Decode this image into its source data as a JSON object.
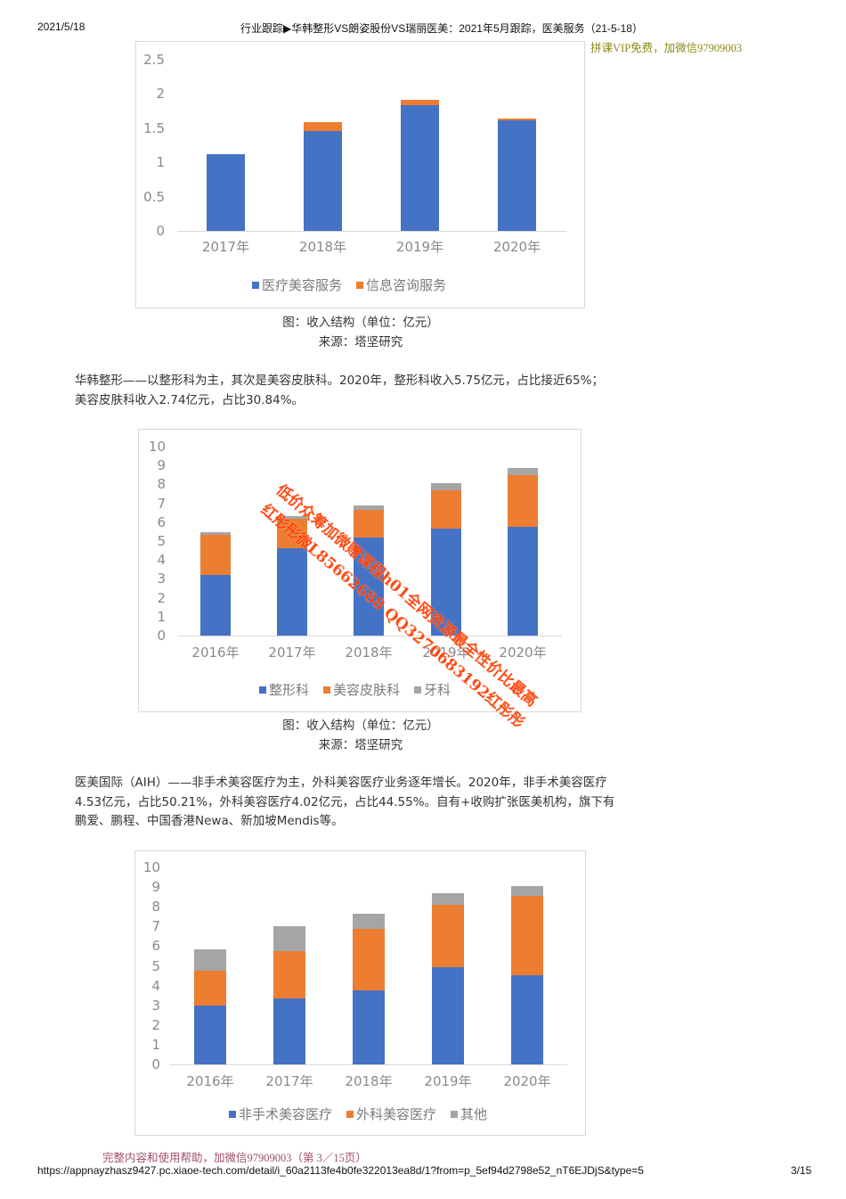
{
  "header": {
    "date": "2021/5/18",
    "title": "行业跟踪▶华韩整形VS朗姿股份VS瑞丽医美：2021年5月跟踪，医美服务（21-5-18）",
    "promo": "拼课VIP免费，加微信97909003"
  },
  "colors": {
    "blue": "#4472c4",
    "orange": "#ed7d31",
    "gray": "#a5a5a5",
    "watermark": "#ff3d00"
  },
  "figure1": {
    "caption": "图：收入结构（单位：亿元）",
    "source": "来源：塔坚研究"
  },
  "paragraph1": {
    "line1": "华韩整形——以整形科为主，其次是美容皮肤科。2020年，整形科收入5.75亿元，占比接近65%；",
    "line2": "美容皮肤科收入2.74亿元，占比30.84%。"
  },
  "figure2": {
    "caption": "图：收入结构（单位：亿元）",
    "source": "来源：塔坚研究"
  },
  "paragraph2": {
    "line1": "医美国际（AIH）——非手术美容医疗为主，外科美容医疗业务逐年增长。2020年，非手术美容医疗",
    "line2": "4.53亿元，占比50.21%，外科美容医疗4.02亿元，占比44.55%。自有+收购扩张医美机构，旗下有",
    "line3": "鹏爱、鹏程、中国香港Newa、新加坡Mendis等。"
  },
  "watermark": {
    "line1": "低价众筹加微赠课程h01全网资源最全性价比最高",
    "line2": "红彤彤微L85662688 QQ3270683192红彤彤"
  },
  "footer": {
    "promo": "完整内容和使用帮助，加微信97909003（第 3／15页）",
    "url": "https://appnayzhasz9427.pc.xiaoe-tech.com/detail/i_60a2113fe4b0fe322013ea8d/1?from=p_5ef94d2798e52_nT6EJDjS&type=5",
    "page": "3/15"
  },
  "chart_data": [
    {
      "type": "bar",
      "stacked": true,
      "title": "",
      "xlabel": "",
      "ylabel": "",
      "ylim": [
        0,
        2.5
      ],
      "yticks": [
        "0",
        "0.5",
        "1",
        "1.5",
        "2",
        "2.5"
      ],
      "categories": [
        "2017年",
        "2018年",
        "2019年",
        "2020年"
      ],
      "series": [
        {
          "name": "医疗美容服务",
          "color": "#4472c4",
          "values": [
            1.12,
            1.46,
            1.83,
            1.62
          ]
        },
        {
          "name": "信息咨询服务",
          "color": "#ed7d31",
          "values": [
            0.0,
            0.13,
            0.09,
            0.02
          ]
        }
      ],
      "legend_position": "bottom",
      "grid": false
    },
    {
      "type": "bar",
      "stacked": true,
      "title": "",
      "xlabel": "",
      "ylabel": "",
      "ylim": [
        0,
        10
      ],
      "yticks": [
        "0",
        "1",
        "2",
        "3",
        "4",
        "5",
        "6",
        "7",
        "8",
        "9",
        "10"
      ],
      "categories": [
        "2016年",
        "2017年",
        "2018年",
        "2019年",
        "2020年"
      ],
      "series": [
        {
          "name": "整形科",
          "color": "#4472c4",
          "values": [
            3.2,
            4.6,
            5.2,
            5.65,
            5.75
          ]
        },
        {
          "name": "美容皮肤科",
          "color": "#ed7d31",
          "values": [
            2.15,
            1.6,
            1.45,
            2.05,
            2.74
          ]
        },
        {
          "name": "牙科",
          "color": "#a5a5a5",
          "values": [
            0.1,
            0.1,
            0.25,
            0.35,
            0.4
          ]
        }
      ],
      "legend_position": "bottom",
      "grid": false
    },
    {
      "type": "bar",
      "stacked": true,
      "title": "",
      "xlabel": "",
      "ylabel": "",
      "ylim": [
        0,
        10
      ],
      "yticks": [
        "0",
        "1",
        "2",
        "3",
        "4",
        "5",
        "6",
        "7",
        "8",
        "9",
        "10"
      ],
      "categories": [
        "2016年",
        "2017年",
        "2018年",
        "2019年",
        "2020年"
      ],
      "series": [
        {
          "name": "非手术美容医疗",
          "color": "#4472c4",
          "values": [
            3.0,
            3.35,
            3.75,
            4.95,
            4.53
          ]
        },
        {
          "name": "外科美容医疗",
          "color": "#ed7d31",
          "values": [
            1.75,
            2.4,
            3.15,
            3.15,
            4.02
          ]
        },
        {
          "name": "其他",
          "color": "#a5a5a5",
          "values": [
            1.1,
            1.25,
            0.75,
            0.6,
            0.5
          ]
        }
      ],
      "legend_position": "bottom",
      "grid": false
    }
  ]
}
